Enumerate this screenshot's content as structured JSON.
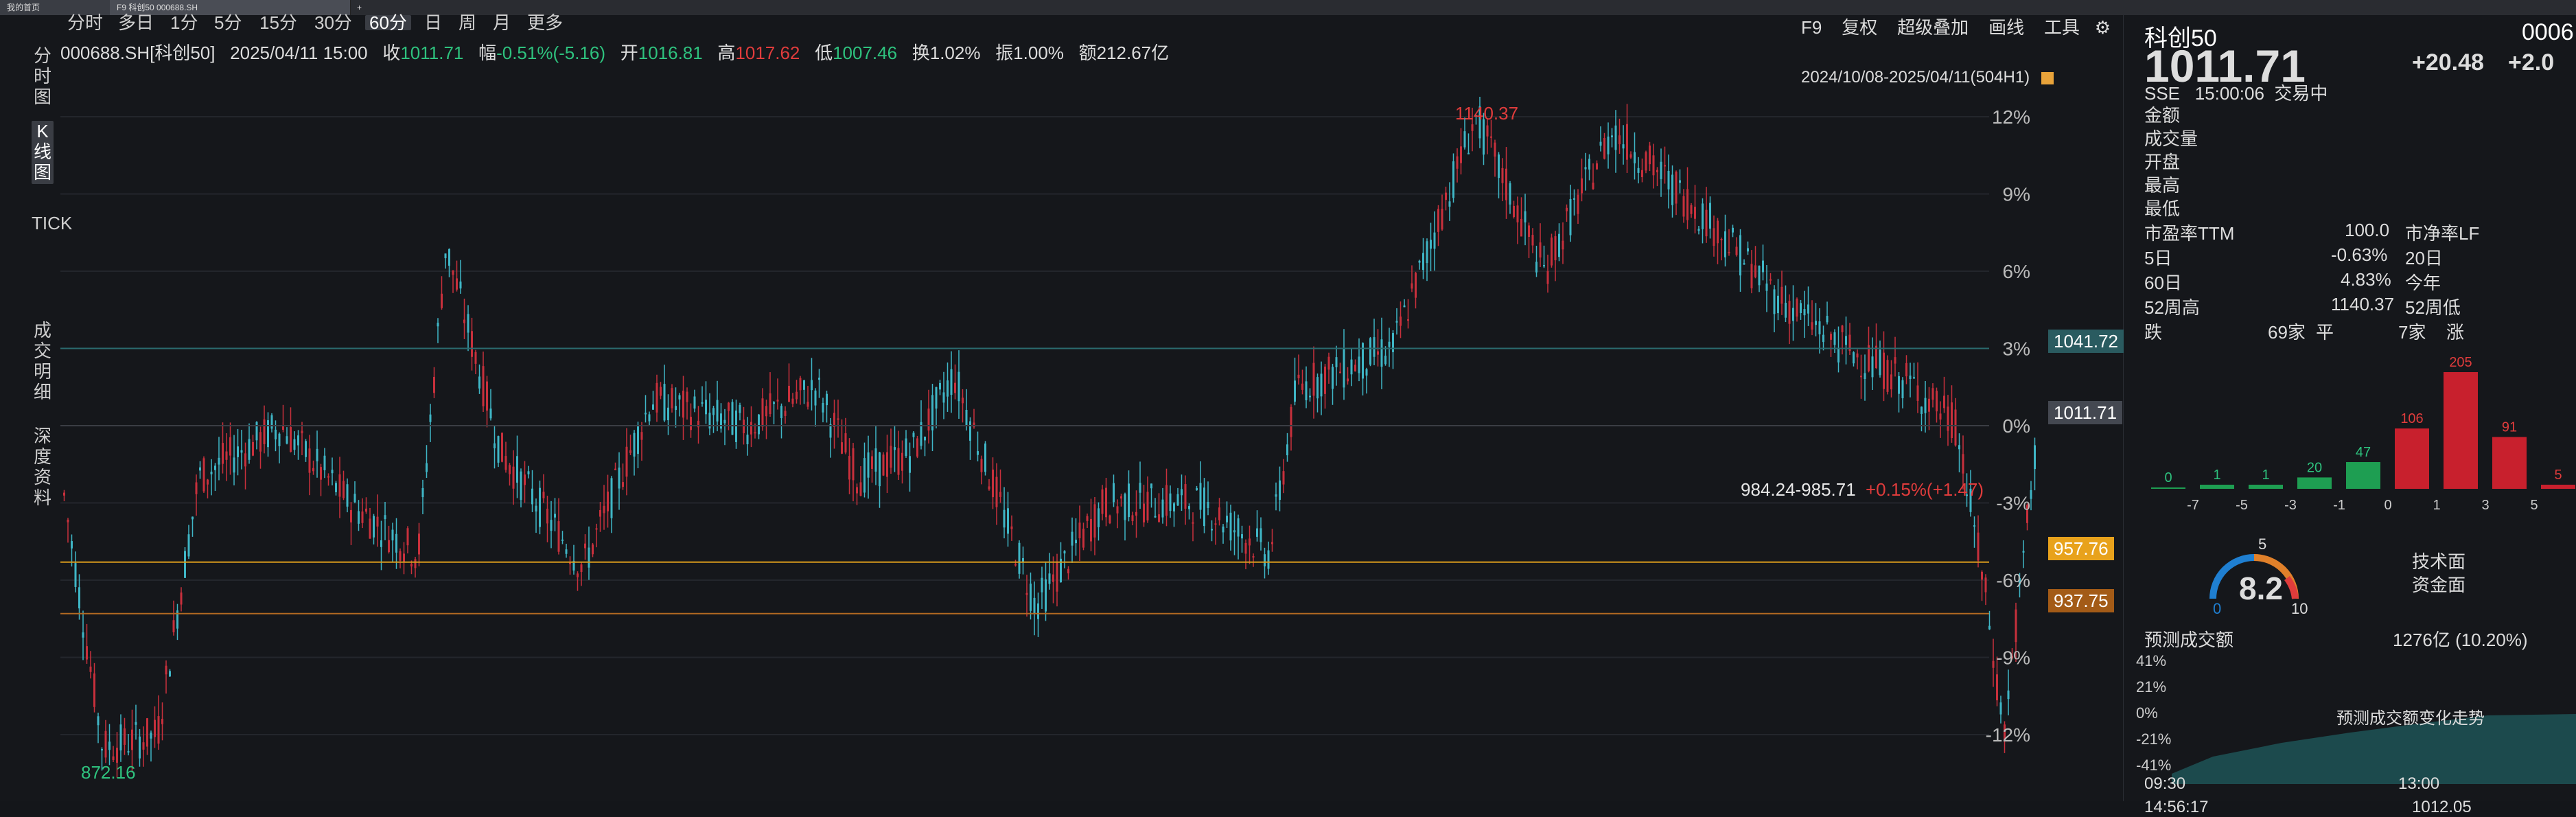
{
  "top_tabs": [
    "我的首页",
    "F9 科创50 000688.SH",
    "+"
  ],
  "periods": [
    "分时",
    "多日",
    "1分",
    "5分",
    "15分",
    "30分",
    "60分",
    "日",
    "周",
    "月",
    "更多"
  ],
  "active_period": "60分",
  "toolbar": [
    "F9",
    "复权",
    "超级叠加",
    "画线",
    "工具"
  ],
  "side_tabs": [
    "分时图",
    "K线图",
    "TICK",
    "成交明细",
    "深度资料"
  ],
  "active_side_tab": "K线图",
  "info": {
    "code": "000688.SH[科创50]",
    "datetime": "2025/04/11 15:00",
    "close_label": "收",
    "close": "1011.71",
    "change_label": "幅",
    "change": "-0.51%(-5.16)",
    "open_label": "开",
    "open": "1016.81",
    "high_label": "高",
    "high": "1017.62",
    "low_label": "低",
    "low": "1007.46",
    "turnover_label": "换",
    "turnover": "1.02%",
    "amplitude_label": "振",
    "amplitude": "1.00%",
    "amount_label": "额",
    "amount": "212.67亿"
  },
  "range": "2024/10/08-2025/04/11(504H1)",
  "annotations": {
    "high": "1140.37",
    "low": "872.16",
    "range_note": "984.24-985.71",
    "range_change": "+0.15%(+1.47)"
  },
  "price_tags": {
    "line1": "1041.72",
    "current": "1011.71",
    "line2": "957.76",
    "line3": "937.75"
  },
  "pct_axis": [
    "12%",
    "9%",
    "6%",
    "3%",
    "0%",
    "-3%",
    "-6%",
    "-9%",
    "-12%"
  ],
  "chart_data": {
    "type": "candlestick",
    "title": "",
    "high": 1140.37,
    "low": 872.16,
    "last": 1011.71,
    "ylim_pct": [
      -12,
      12
    ]
  },
  "quote": {
    "name": "科创50",
    "code": "0006",
    "price": "1011.71",
    "change": "+20.48",
    "change_pct": "+2.0",
    "exchange": "SSE",
    "time": "15:00:06",
    "status": "交易中",
    "fields_left": [
      "金额",
      "成交量",
      "开盘",
      "最高",
      "最低"
    ],
    "pe_label": "市盈率TTM",
    "pe": "100.0",
    "pb_label": "市净率LF",
    "d5_label": "5日",
    "d5": "-0.63%",
    "d20_label": "20日",
    "d60_label": "60日",
    "d60": "4.83%",
    "ytd_label": "今年",
    "w52h_label": "52周高",
    "w52h": "1140.37",
    "w52l_label": "52周低",
    "fall_label": "跌",
    "fall": "69家",
    "flat_label": "平",
    "flat": "7家",
    "rise_label": "涨"
  },
  "distribution": {
    "values": [
      0,
      1,
      1,
      20,
      47,
      106,
      205,
      91,
      5
    ],
    "xlabels": [
      "-7",
      "-5",
      "-3",
      "-1",
      "0",
      "1",
      "3",
      "5"
    ]
  },
  "gauge": {
    "value": "8.2",
    "min": "0",
    "mid": "5",
    "max": "10",
    "tech_label": "技术面",
    "fund_label": "资金面"
  },
  "forecast": {
    "label": "预测成交额",
    "value": "1276亿 (10.20%)",
    "ylabels": [
      "41%",
      "21%",
      "0%",
      "-21%",
      "-41%"
    ],
    "xlabels": [
      "09:30",
      "13:00"
    ],
    "note": "预测成交额变化走势"
  },
  "bottom_row": {
    "time": "14:56:17",
    "price": "1012.05"
  }
}
